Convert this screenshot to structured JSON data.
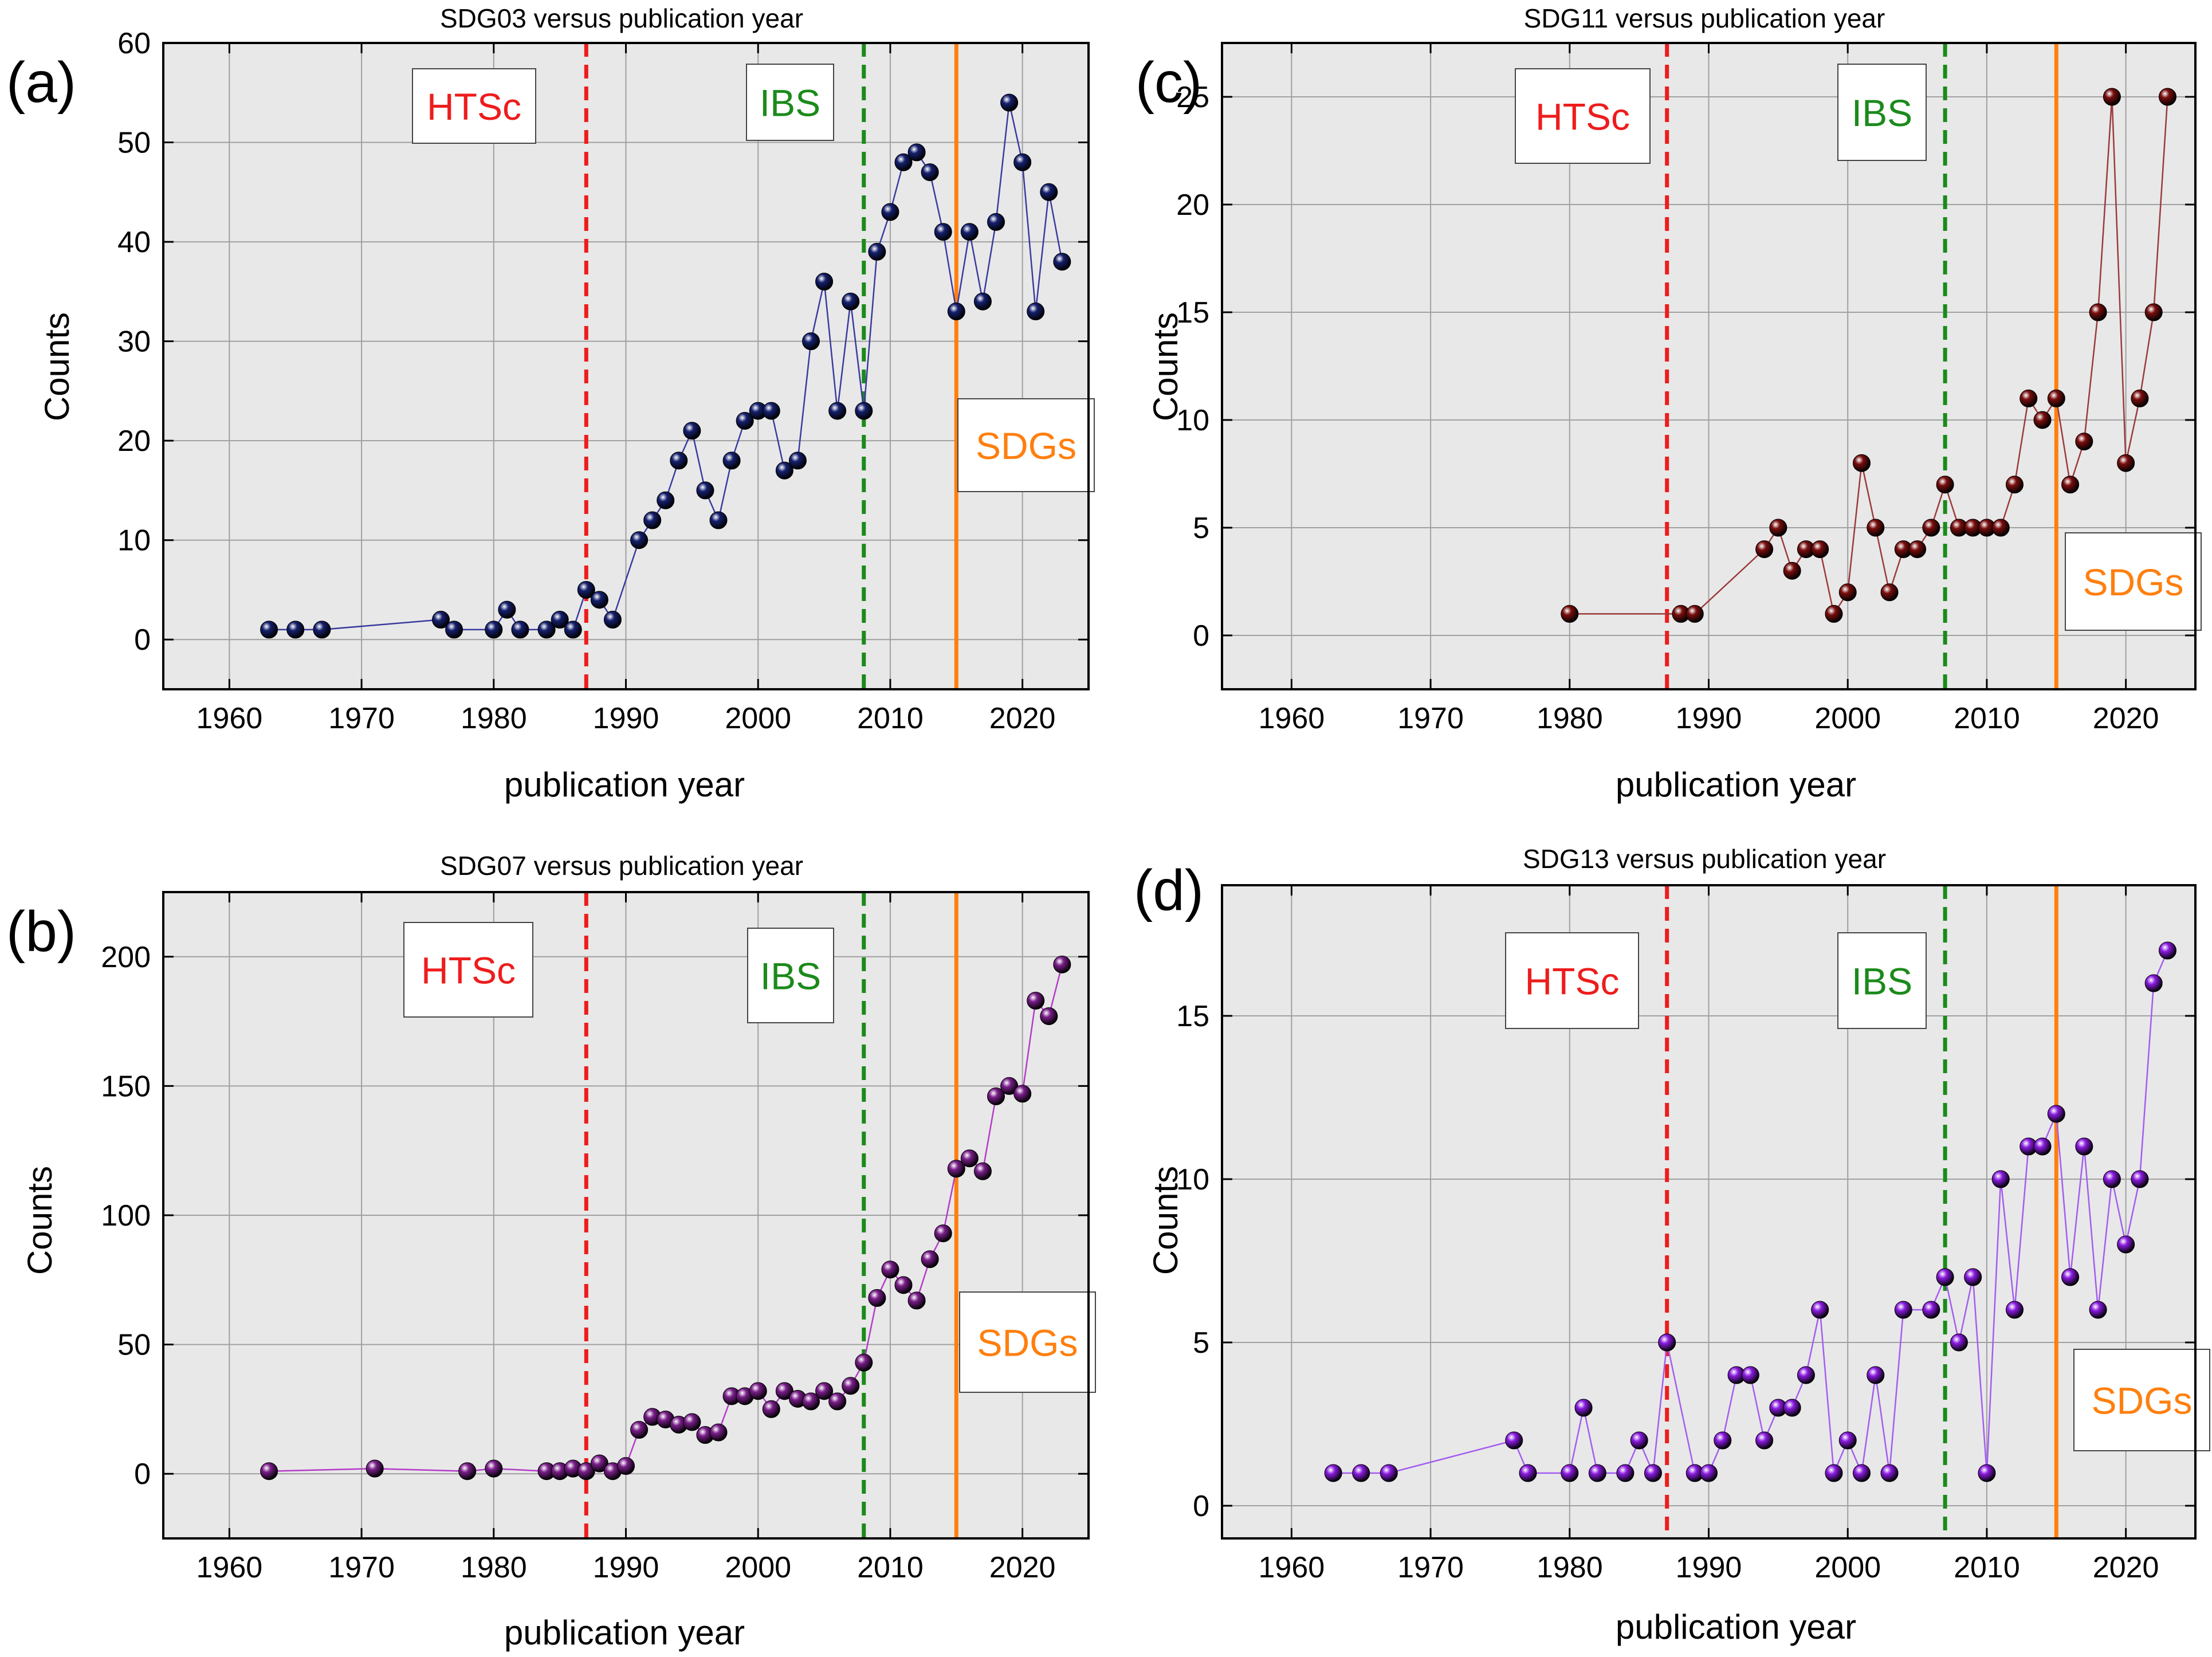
{
  "chart_data": [
    {
      "type": "line",
      "panel_label": "(a)",
      "title": "SDG03 versus publication year",
      "xlabel": "publication year",
      "ylabel": "Counts",
      "xlim": [
        1955,
        2025
      ],
      "ylim": [
        -5,
        60
      ],
      "xticks": [
        "1960",
        "1970",
        "1980",
        "1990",
        "2000",
        "2010",
        "2020"
      ],
      "yticks": [
        "0",
        "10",
        "20",
        "30",
        "40",
        "50",
        "60"
      ],
      "marker_color": "#15206e",
      "line_color": "#3a3aa0",
      "grid": true,
      "x": [
        1963,
        1965,
        1967,
        1976,
        1977,
        1980,
        1981,
        1982,
        1984,
        1985,
        1986,
        1987,
        1988,
        1989,
        1991,
        1992,
        1993,
        1994,
        1995,
        1996,
        1997,
        1998,
        1999,
        2000,
        2001,
        2002,
        2003,
        2004,
        2005,
        2006,
        2007,
        2008,
        2009,
        2010,
        2011,
        2012,
        2013,
        2014,
        2015,
        2016,
        2017,
        2018,
        2019,
        2020,
        2021,
        2022,
        2023
      ],
      "y": [
        1,
        1,
        1,
        2,
        1,
        1,
        3,
        1,
        1,
        2,
        1,
        5,
        4,
        2,
        10,
        12,
        14,
        18,
        21,
        15,
        12,
        18,
        22,
        23,
        23,
        17,
        18,
        30,
        36,
        23,
        34,
        23,
        39,
        43,
        48,
        49,
        47,
        41,
        33,
        41,
        34,
        42,
        54,
        48,
        33,
        45,
        38
      ],
      "vlines": [
        {
          "x": 1987,
          "label": "HTSc",
          "color": "#ee1c1c",
          "style": "dashed"
        },
        {
          "x": 2008,
          "label": "IBS",
          "color": "#1b8a1b",
          "style": "dashed"
        },
        {
          "x": 2015,
          "label": "SDGs",
          "color": "#ff7f0e",
          "style": "solid"
        }
      ]
    },
    {
      "type": "line",
      "panel_label": "(b)",
      "title": "SDG07 versus publication year",
      "xlabel": "publication year",
      "ylabel": "Counts",
      "xlim": [
        1955,
        2025
      ],
      "ylim": [
        -25,
        225
      ],
      "xticks": [
        "1960",
        "1970",
        "1980",
        "1990",
        "2000",
        "2010",
        "2020"
      ],
      "yticks": [
        "0",
        "50",
        "100",
        "150",
        "200"
      ],
      "marker_color": "#7a1e8a",
      "line_color": "#b43ac8",
      "grid": true,
      "x": [
        1963,
        1971,
        1978,
        1980,
        1984,
        1985,
        1986,
        1987,
        1988,
        1989,
        1990,
        1991,
        1992,
        1993,
        1994,
        1995,
        1996,
        1997,
        1998,
        1999,
        2000,
        2001,
        2002,
        2003,
        2004,
        2005,
        2006,
        2007,
        2008,
        2009,
        2010,
        2011,
        2012,
        2013,
        2014,
        2015,
        2016,
        2017,
        2018,
        2019,
        2020,
        2021,
        2022,
        2023
      ],
      "y": [
        1,
        2,
        1,
        2,
        1,
        1,
        2,
        1,
        4,
        1,
        3,
        17,
        22,
        21,
        19,
        20,
        15,
        16,
        30,
        30,
        32,
        25,
        32,
        29,
        28,
        32,
        28,
        34,
        43,
        68,
        79,
        73,
        67,
        83,
        93,
        118,
        122,
        117,
        146,
        150,
        147,
        183,
        177,
        197
      ],
      "vlines": [
        {
          "x": 1987,
          "label": "HTSc",
          "color": "#ee1c1c",
          "style": "dashed"
        },
        {
          "x": 2008,
          "label": "IBS",
          "color": "#1b8a1b",
          "style": "dashed"
        },
        {
          "x": 2015,
          "label": "SDGs",
          "color": "#ff7f0e",
          "style": "solid"
        }
      ]
    },
    {
      "type": "line",
      "panel_label": "(c)",
      "title": "SDG11 versus publication year",
      "xlabel": "publication year",
      "ylabel": "Counts",
      "xlim": [
        1955,
        2025
      ],
      "ylim": [
        -2.5,
        27.5
      ],
      "xticks": [
        "1960",
        "1970",
        "1980",
        "1990",
        "2000",
        "2010",
        "2020"
      ],
      "yticks": [
        "0",
        "5",
        "10",
        "15",
        "20",
        "25"
      ],
      "marker_color": "#7a0e0e",
      "line_color": "#9b3a3a",
      "grid": true,
      "x": [
        1980,
        1988,
        1989,
        1994,
        1995,
        1996,
        1997,
        1998,
        1999,
        2000,
        2001,
        2002,
        2003,
        2004,
        2005,
        2006,
        2007,
        2008,
        2009,
        2010,
        2011,
        2012,
        2013,
        2014,
        2015,
        2016,
        2017,
        2018,
        2019,
        2020,
        2021,
        2022,
        2023
      ],
      "y": [
        1,
        1,
        1,
        4,
        5,
        3,
        4,
        4,
        1,
        2,
        8,
        5,
        2,
        4,
        4,
        5,
        7,
        5,
        5,
        5,
        5,
        7,
        11,
        10,
        11,
        7,
        9,
        15,
        25,
        8,
        11,
        15,
        25
      ],
      "vlines": [
        {
          "x": 1987,
          "label": "HTSc",
          "color": "#ee1c1c",
          "style": "dashed"
        },
        {
          "x": 2007,
          "label": "IBS",
          "color": "#1b8a1b",
          "style": "dashed"
        },
        {
          "x": 2015,
          "label": "SDGs",
          "color": "#ff7f0e",
          "style": "solid"
        }
      ]
    },
    {
      "type": "line",
      "panel_label": "(d)",
      "title": "SDG13 versus publication year",
      "xlabel": "publication year",
      "ylabel": "Counts",
      "xlim": [
        1955,
        2025
      ],
      "ylim": [
        -1,
        19
      ],
      "xticks": [
        "1960",
        "1970",
        "1980",
        "1990",
        "2000",
        "2010",
        "2020"
      ],
      "yticks": [
        "0",
        "5",
        "10",
        "15"
      ],
      "marker_color": "#8a1be0",
      "line_color": "#a45cf0",
      "grid": true,
      "x": [
        1963,
        1965,
        1967,
        1976,
        1977,
        1980,
        1981,
        1982,
        1984,
        1985,
        1986,
        1987,
        1989,
        1990,
        1991,
        1992,
        1993,
        1994,
        1995,
        1996,
        1997,
        1998,
        1999,
        2000,
        2001,
        2002,
        2003,
        2004,
        2006,
        2007,
        2008,
        2009,
        2010,
        2011,
        2012,
        2013,
        2014,
        2015,
        2016,
        2017,
        2018,
        2019,
        2020,
        2021,
        2022,
        2023
      ],
      "y": [
        1,
        1,
        1,
        2,
        1,
        1,
        3,
        1,
        1,
        2,
        1,
        5,
        1,
        1,
        2,
        4,
        4,
        2,
        3,
        3,
        4,
        6,
        1,
        2,
        1,
        4,
        1,
        6,
        6,
        7,
        5,
        7,
        1,
        10,
        6,
        11,
        11,
        12,
        7,
        11,
        6,
        10,
        8,
        10,
        16,
        17
      ],
      "vlines": [
        {
          "x": 1987,
          "label": "HTSc",
          "color": "#ee1c1c",
          "style": "dashed"
        },
        {
          "x": 2007,
          "label": "IBS",
          "color": "#1b8a1b",
          "style": "dashed"
        },
        {
          "x": 2015,
          "label": "SDGs",
          "color": "#ff7f0e",
          "style": "solid"
        }
      ]
    }
  ]
}
